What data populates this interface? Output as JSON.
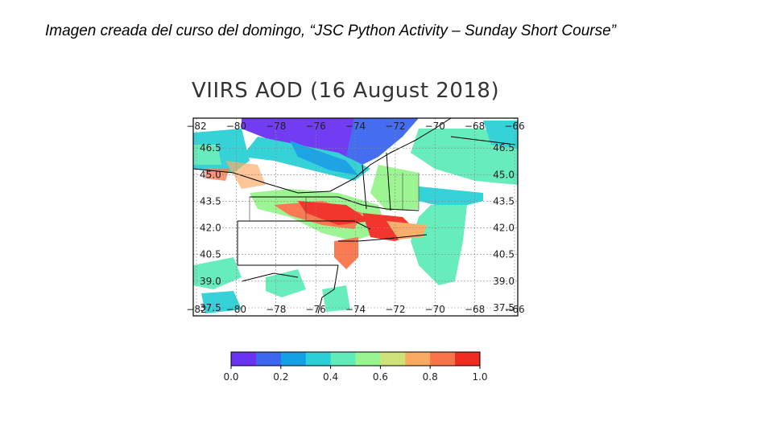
{
  "caption": "Imagen creada del curso del domingo, “JSC Python Activity – Sunday Short Course”",
  "chart_data": {
    "type": "heatmap",
    "title": "VIIRS AOD (16 August 2018)",
    "xlim": [
      -82,
      -66
    ],
    "ylim": [
      37.5,
      48
    ],
    "grid": true,
    "top_tick_labels": [
      "−82",
      "−80",
      "−78",
      "−76",
      "−74",
      "−72",
      "−70",
      "−68",
      "−66"
    ],
    "bottom_tick_labels": [
      "−82",
      "−80",
      "−78",
      "−76",
      "−74",
      "−72",
      "−70",
      "−68",
      "−66"
    ],
    "left_tick_labels": [
      "46.5",
      "45.0",
      "43.5",
      "42.0",
      "40.5",
      "39.0",
      "37.5"
    ],
    "right_tick_labels": [
      "46.5",
      "45.0",
      "43.5",
      "42.0",
      "40.5",
      "39.0",
      "37.5"
    ],
    "colorbar": {
      "range": [
        0.0,
        1.0
      ],
      "tick_labels": [
        "0.0",
        "0.2",
        "0.4",
        "0.6",
        "0.8",
        "1.0"
      ],
      "colors": [
        "#6a32f2",
        "#3c66ef",
        "#139fe3",
        "#2bd0d6",
        "#5fecb8",
        "#98f48e",
        "#cfe27a",
        "#fbaa64",
        "#f9734a",
        "#f22b22"
      ]
    }
  }
}
